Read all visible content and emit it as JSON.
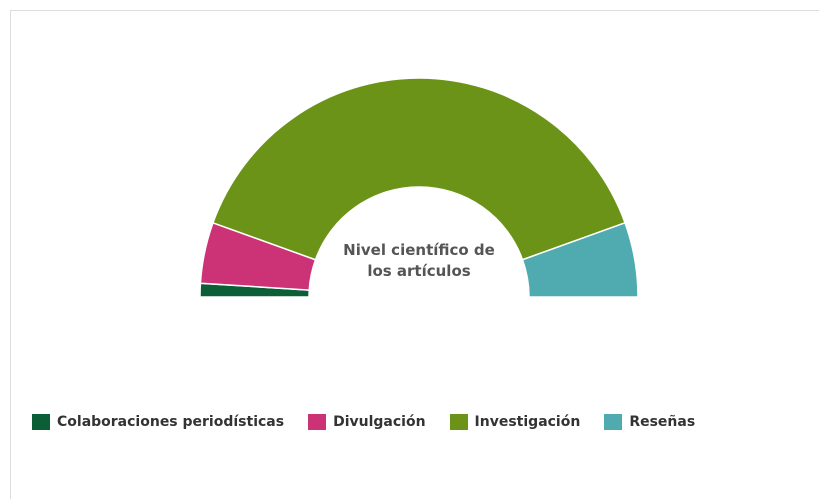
{
  "chart_data": {
    "type": "semi-donut",
    "title": "Nivel científico de los artículos",
    "categories": [
      "Colaboraciones periodísticas",
      "Divulgación",
      "Investigación",
      "Reseñas"
    ],
    "values": [
      2,
      9,
      78,
      11
    ],
    "colors": [
      "#0b5e36",
      "#cc3377",
      "#6b9318",
      "#4fabb0"
    ]
  }
}
